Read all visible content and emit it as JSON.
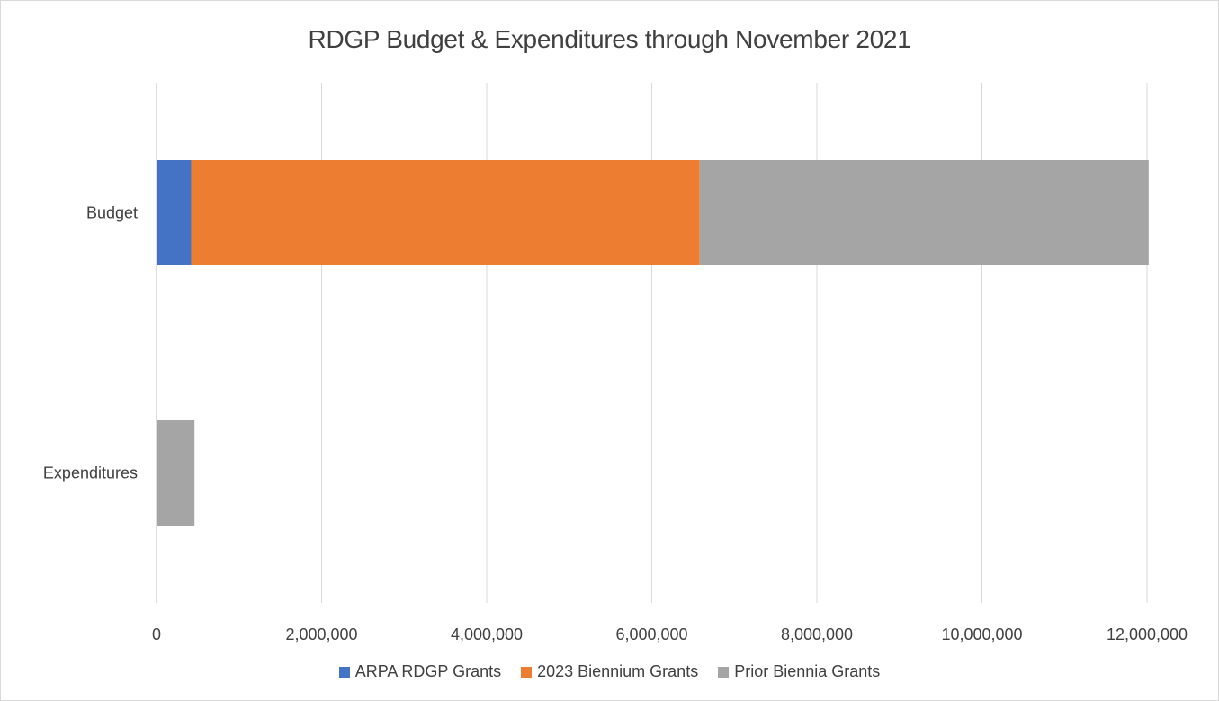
{
  "chart_data": {
    "type": "bar",
    "orientation": "horizontal",
    "stacked": true,
    "title": "RDGP Budget & Expenditures through November 2021",
    "categories": [
      "Budget",
      "Expenditures"
    ],
    "series": [
      {
        "name": "ARPA RDGP Grants",
        "color": "#4472C4",
        "values": [
          420000,
          0
        ]
      },
      {
        "name": "2023 Biennium Grants",
        "color": "#ED7D31",
        "values": [
          6160000,
          0
        ]
      },
      {
        "name": "Prior Biennia Grants",
        "color": "#A5A5A5",
        "values": [
          5440000,
          460000
        ]
      }
    ],
    "xlim": [
      0,
      12000000
    ],
    "xticks": [
      "0",
      "2,000,000",
      "4,000,000",
      "6,000,000",
      "8,000,000",
      "10,000,000",
      "12,000,000"
    ],
    "grid": true,
    "legend_position": "bottom"
  }
}
